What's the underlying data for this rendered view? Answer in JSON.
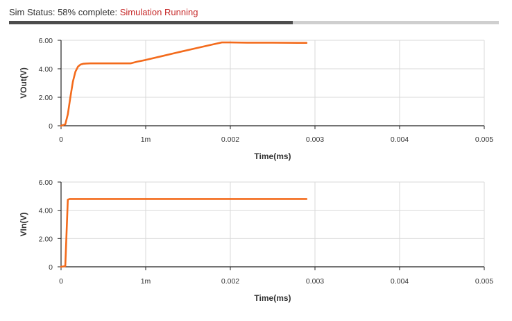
{
  "status": {
    "prefix": "Sim Status: 58% complete: ",
    "state": "Simulation Running",
    "progress": 0.58
  },
  "colors": {
    "series": "#f36b1c",
    "state_text": "#c62828",
    "progress_fill": "#4d4d4d",
    "progress_track": "#cfcfcf",
    "grid": "#d9d9d9"
  },
  "chart_data": [
    {
      "type": "line",
      "title": "",
      "xlabel": "Time(ms)",
      "ylabel": "VOut(V)",
      "xlim": [
        0,
        0.005
      ],
      "ylim": [
        0,
        6
      ],
      "xticks": [
        0,
        0.001,
        0.002,
        0.003,
        0.004,
        0.005
      ],
      "xtick_labels": [
        "0",
        "1m",
        "0.002",
        "0.003",
        "0.004",
        "0.005"
      ],
      "yticks": [
        0,
        2,
        4,
        6
      ],
      "ytick_labels": [
        "0",
        "2.00",
        "4.00",
        "6.00"
      ],
      "grid": true,
      "series": [
        {
          "x": [
            0,
            5e-05,
            8e-05,
            0.00011,
            0.00014,
            0.00017,
            0.0002,
            0.00023,
            0.00026,
            0.0003,
            0.00035,
            0.0004,
            0.0005,
            0.0006,
            0.0007,
            0.00082,
            0.0009,
            0.001,
            0.0012,
            0.0014,
            0.0016,
            0.0018,
            0.0019,
            0.002,
            0.0022,
            0.0025,
            0.0028,
            0.0029
          ],
          "y": [
            0,
            0.1,
            0.8,
            2.0,
            3.1,
            3.8,
            4.15,
            4.3,
            4.35,
            4.37,
            4.38,
            4.38,
            4.38,
            4.38,
            4.38,
            4.38,
            4.5,
            4.62,
            4.9,
            5.18,
            5.45,
            5.72,
            5.85,
            5.85,
            5.83,
            5.83,
            5.82,
            5.82
          ]
        }
      ]
    },
    {
      "type": "line",
      "title": "",
      "xlabel": "Time(ms)",
      "ylabel": "VIn(V)",
      "xlim": [
        0,
        0.005
      ],
      "ylim": [
        0,
        6
      ],
      "xticks": [
        0,
        0.001,
        0.002,
        0.003,
        0.004,
        0.005
      ],
      "xtick_labels": [
        "0",
        "1m",
        "0.002",
        "0.003",
        "0.004",
        "0.005"
      ],
      "yticks": [
        0,
        2,
        4,
        6
      ],
      "ytick_labels": [
        "0",
        "2.00",
        "4.00",
        "6.00"
      ],
      "grid": true,
      "series": [
        {
          "x": [
            0,
            5e-05,
            8e-05,
            0.0001,
            0.0005,
            0.001,
            0.0015,
            0.002,
            0.0025,
            0.0029
          ],
          "y": [
            0,
            0.05,
            4.75,
            4.8,
            4.8,
            4.8,
            4.8,
            4.8,
            4.8,
            4.8
          ]
        }
      ]
    }
  ]
}
